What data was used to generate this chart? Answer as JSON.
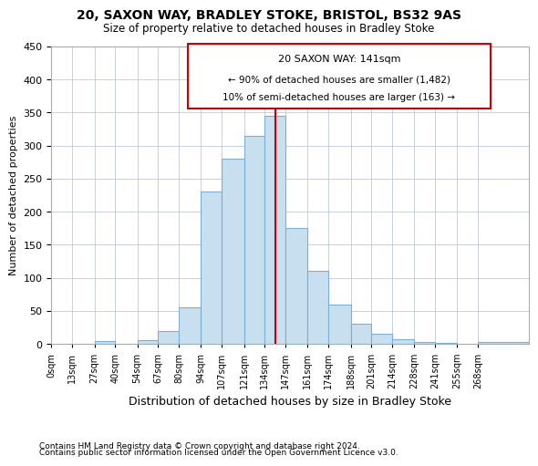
{
  "title": "20, SAXON WAY, BRADLEY STOKE, BRISTOL, BS32 9AS",
  "subtitle": "Size of property relative to detached houses in Bradley Stoke",
  "xlabel": "Distribution of detached houses by size in Bradley Stoke",
  "ylabel": "Number of detached properties",
  "footnote1": "Contains HM Land Registry data © Crown copyright and database right 2024.",
  "footnote2": "Contains public sector information licensed under the Open Government Licence v3.0.",
  "annotation_title": "20 SAXON WAY: 141sqm",
  "annotation_line1": "← 90% of detached houses are smaller (1,482)",
  "annotation_line2": "10% of semi-detached houses are larger (163) →",
  "property_line_x": 141,
  "bar_categories": [
    "0sqm",
    "13sqm",
    "27sqm",
    "40sqm",
    "54sqm",
    "67sqm",
    "80sqm",
    "94sqm",
    "107sqm",
    "121sqm",
    "134sqm",
    "147sqm",
    "161sqm",
    "174sqm",
    "188sqm",
    "201sqm",
    "214sqm",
    "228sqm",
    "241sqm",
    "255sqm",
    "268sqm"
  ],
  "bar_edges": [
    0,
    13,
    27,
    40,
    54,
    67,
    80,
    94,
    107,
    121,
    134,
    147,
    161,
    174,
    188,
    201,
    214,
    228,
    241,
    255,
    268,
    300
  ],
  "bar_values": [
    0,
    0,
    5,
    0,
    6,
    20,
    55,
    230,
    280,
    315,
    345,
    175,
    110,
    60,
    30,
    15,
    7,
    3,
    1,
    0,
    3
  ],
  "bar_color": "#c8dff0",
  "bar_edge_color": "#7bafd4",
  "line_color": "#cc0000",
  "background_color": "#ffffff",
  "annotation_box_color": "#ffffff",
  "annotation_box_edge": "#cc0000",
  "ylim": [
    0,
    450
  ],
  "yticks": [
    0,
    50,
    100,
    150,
    200,
    250,
    300,
    350,
    400,
    450
  ],
  "figwidth": 6.0,
  "figheight": 5.0,
  "dpi": 100
}
